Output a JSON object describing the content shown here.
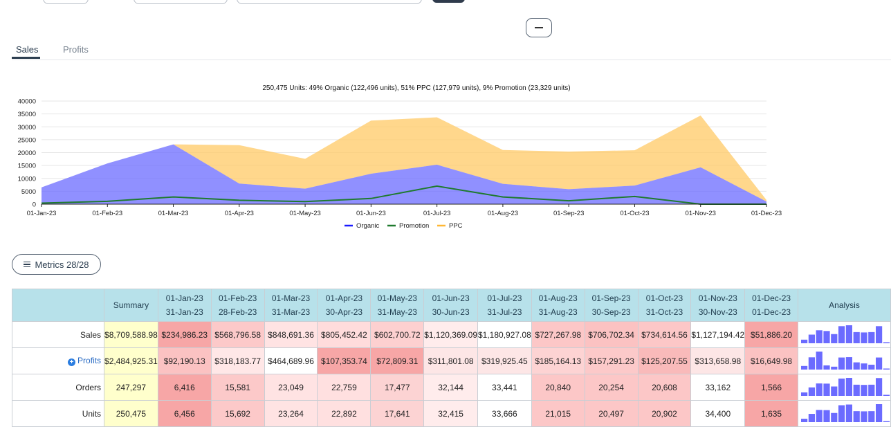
{
  "tabs": [
    {
      "label": "Sales",
      "active": true
    },
    {
      "label": "Profits",
      "active": false
    }
  ],
  "metrics_button": {
    "label": "Metrics 28/28"
  },
  "chart_data": {
    "type": "area",
    "title": "250,475 Units: 49% Organic (122,496 units), 51% PPC (127,979 units), 9% Promotion (23,329 units)",
    "x": [
      "01-Jan-23",
      "01-Feb-23",
      "01-Mar-23",
      "01-Apr-23",
      "01-May-23",
      "01-Jun-23",
      "01-Jul-23",
      "01-Aug-23",
      "01-Sep-23",
      "01-Oct-23",
      "01-Nov-23",
      "01-Dec-23"
    ],
    "ylim": [
      0,
      40000
    ],
    "yticks": [
      0,
      5000,
      10000,
      15000,
      20000,
      25000,
      30000,
      35000,
      40000
    ],
    "grid": true,
    "legend_position": "bottom",
    "series": [
      {
        "name": "Organic",
        "kind": "area",
        "color": "#6b6bff",
        "values": [
          6500,
          15800,
          23200,
          8000,
          6000,
          11800,
          15300,
          7900,
          5800,
          7200,
          14300,
          1000
        ]
      },
      {
        "name": "Promotion",
        "kind": "line",
        "color": "#1f7a2e",
        "values": [
          400,
          1100,
          2800,
          1500,
          1000,
          2200,
          7000,
          2800,
          1300,
          3000,
          0,
          0
        ]
      },
      {
        "name": "PPC",
        "kind": "area",
        "color": "#ffc966",
        "values": [
          0,
          0,
          0,
          14900,
          11600,
          20600,
          18400,
          13100,
          14600,
          13700,
          20100,
          600
        ]
      }
    ]
  },
  "table": {
    "columns": [
      {
        "label": "",
        "sub": ""
      },
      {
        "label": "Summary",
        "sub": ""
      },
      {
        "label": "01-Jan-23",
        "sub": "31-Jan-23"
      },
      {
        "label": "01-Feb-23",
        "sub": "28-Feb-23"
      },
      {
        "label": "01-Mar-23",
        "sub": "31-Mar-23"
      },
      {
        "label": "01-Apr-23",
        "sub": "30-Apr-23"
      },
      {
        "label": "01-May-23",
        "sub": "31-May-23"
      },
      {
        "label": "01-Jun-23",
        "sub": "30-Jun-23"
      },
      {
        "label": "01-Jul-23",
        "sub": "31-Jul-23"
      },
      {
        "label": "01-Aug-23",
        "sub": "31-Aug-23"
      },
      {
        "label": "01-Sep-23",
        "sub": "30-Sep-23"
      },
      {
        "label": "01-Oct-23",
        "sub": "31-Oct-23"
      },
      {
        "label": "01-Nov-23",
        "sub": "30-Nov-23"
      },
      {
        "label": "01-Dec-23",
        "sub": "01-Dec-23"
      },
      {
        "label": "Analysis",
        "sub": ""
      }
    ],
    "rows": [
      {
        "label": "Sales",
        "link": false,
        "summary": "$8,709,588.98",
        "cells": [
          "$234,986.23",
          "$568,796.58",
          "$848,691.36",
          "$805,452.42",
          "$602,700.72",
          "$1,120,369.09",
          "$1,180,927.08",
          "$727,267.98",
          "$706,702.34",
          "$734,614.56",
          "$1,127,194.42",
          "$51,886.20"
        ],
        "colors": [
          "#f7a6a6",
          "#fcc9c9",
          "#ffe3e3",
          "#ffdcdc",
          "#fdd0d0",
          "#ffecec",
          "#ffffff",
          "#fcc7c7",
          "#fbc2c2",
          "#fcc7c7",
          "#ffffff",
          "#f7a6a6"
        ],
        "spark": [
          0.2,
          0.48,
          0.72,
          0.68,
          0.51,
          0.95,
          1.0,
          0.62,
          0.6,
          0.62,
          0.95,
          0.04
        ]
      },
      {
        "label": "Profits",
        "link": true,
        "summary": "$2,484,925.31",
        "cells": [
          "$92,190.13",
          "$318,183.77",
          "$464,689.96",
          "$107,353.74",
          "$72,809.31",
          "$311,801.08",
          "$319,925.45",
          "$185,164.13",
          "$157,291.23",
          "$125,207.55",
          "$313,658.98",
          "$16,649.98"
        ],
        "colors": [
          "#fbc2c2",
          "#ffe7e7",
          "#ffffff",
          "#f7a6a6",
          "#f7a6a6",
          "#fde6e6",
          "#fde6e6",
          "#fdd3d3",
          "#fcc9c9",
          "#f9baba",
          "#fde6e6",
          "#fbc2c2"
        ],
        "spark": [
          0.2,
          0.68,
          1.0,
          0.23,
          0.16,
          0.67,
          0.69,
          0.4,
          0.34,
          0.27,
          0.67,
          0.04
        ]
      },
      {
        "label": "Orders",
        "link": false,
        "summary": "247,297",
        "cells": [
          "6,416",
          "15,581",
          "23,049",
          "22,759",
          "17,477",
          "32,144",
          "33,441",
          "20,840",
          "20,254",
          "20,608",
          "33,162",
          "1,566"
        ],
        "colors": [
          "#f7a6a6",
          "#fcc9c9",
          "#ffe3e3",
          "#ffe0e0",
          "#fcd3d3",
          "#ffecec",
          "#ffffff",
          "#fcc7c7",
          "#fcc7c7",
          "#fcc7c7",
          "#ffffff",
          "#f7a6a6"
        ],
        "spark": [
          0.19,
          0.47,
          0.69,
          0.68,
          0.52,
          0.96,
          1.0,
          0.62,
          0.61,
          0.62,
          0.99,
          0.05
        ]
      },
      {
        "label": "Units",
        "link": false,
        "summary": "250,475",
        "cells": [
          "6,456",
          "15,692",
          "23,264",
          "22,892",
          "17,641",
          "32,415",
          "33,666",
          "21,015",
          "20,497",
          "20,902",
          "34,400",
          "1,635"
        ],
        "colors": [
          "#f7a6a6",
          "#fcc9c9",
          "#ffe3e3",
          "#ffe0e0",
          "#fcd3d3",
          "#ffecec",
          "#ffffff",
          "#fcc7c7",
          "#fcc7c7",
          "#fcc7c7",
          "#ffffff",
          "#f7a6a6"
        ],
        "spark": [
          0.19,
          0.46,
          0.68,
          0.67,
          0.51,
          0.94,
          0.98,
          0.61,
          0.6,
          0.61,
          1.0,
          0.05
        ]
      }
    ]
  },
  "colors": {
    "accent": "#2c3e50",
    "header_bg": "#b7e1ea",
    "summary_bg": "#ffffcc",
    "spark": "#6b6bff"
  }
}
